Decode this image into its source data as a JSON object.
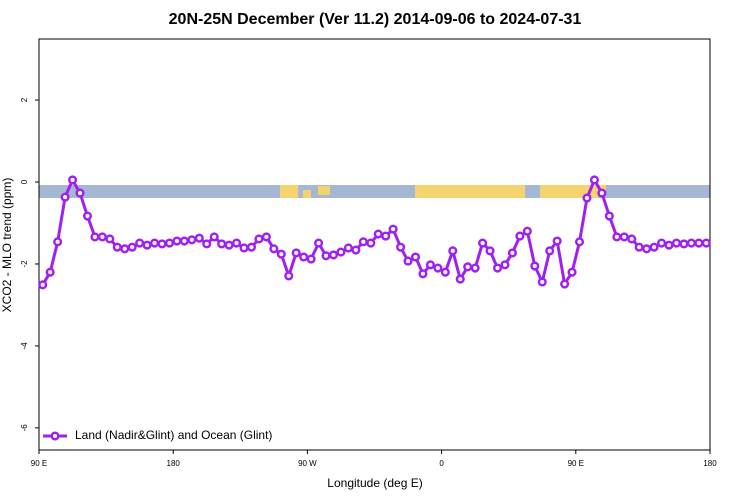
{
  "chart_data": {
    "type": "line",
    "title": "20N-25N December (Ver 11.2)   2014-09-06 to 2024-07-31",
    "x_label": "Longitude (deg E)",
    "y_label": "XCO2 - MLO trend (ppm)",
    "x": [
      92.5,
      97.5,
      102.5,
      107.5,
      112.5,
      117.5,
      122.5,
      127.5,
      132.5,
      137.5,
      142.5,
      147.5,
      152.5,
      157.5,
      162.5,
      167.5,
      172.5,
      177.5,
      182.5,
      187.5,
      192.5,
      197.5,
      202.5,
      207.5,
      212.5,
      217.5,
      222.5,
      227.5,
      232.5,
      237.5,
      242.5,
      247.5,
      252.5,
      257.5,
      262.5,
      267.5,
      272.5,
      277.5,
      282.5,
      287.5,
      292.5,
      297.5,
      302.5,
      307.5,
      312.5,
      317.5,
      322.5,
      327.5,
      332.5,
      337.5,
      342.5,
      347.5,
      352.5,
      357.5,
      362.5,
      367.5,
      372.5,
      377.5,
      382.5,
      387.5,
      392.5,
      397.5,
      402.5,
      407.5,
      412.5,
      417.5,
      422.5,
      427.5,
      432.5,
      437.5,
      442.5,
      447.5,
      452.5,
      457.5,
      462.5,
      467.5,
      472.5,
      477.5,
      482.5,
      487.5,
      492.5,
      497.5,
      502.5,
      507.5,
      512.5,
      517.5,
      522.5,
      527.5,
      532.5,
      537.5
    ],
    "series": [
      {
        "name": "Land (Nadir&Glint) and Ocean (Glint)",
        "color": "#a020f0",
        "values": [
          -2.51,
          -2.2,
          -1.46,
          -0.37,
          0.05,
          -0.27,
          -0.83,
          -1.34,
          -1.34,
          -1.39,
          -1.59,
          -1.63,
          -1.59,
          -1.49,
          -1.54,
          -1.49,
          -1.51,
          -1.49,
          -1.44,
          -1.44,
          -1.41,
          -1.37,
          -1.51,
          -1.34,
          -1.51,
          -1.54,
          -1.49,
          -1.61,
          -1.59,
          -1.39,
          -1.34,
          -1.63,
          -1.76,
          -2.29,
          -1.73,
          -1.83,
          -1.88,
          -1.49,
          -1.8,
          -1.78,
          -1.71,
          -1.61,
          -1.66,
          -1.46,
          -1.49,
          -1.27,
          -1.32,
          -1.15,
          -1.59,
          -1.93,
          -1.83,
          -2.24,
          -2.02,
          -2.1,
          -2.2,
          -1.68,
          -2.37,
          -2.07,
          -2.1,
          -1.49,
          -1.68,
          -2.1,
          -2.02,
          -1.73,
          -1.32,
          -1.2,
          -2.05,
          -2.44,
          -1.68,
          -1.44,
          -2.49,
          -2.2,
          -1.46,
          -0.39,
          0.05,
          -0.27,
          -0.83,
          -1.34,
          -1.34,
          -1.39,
          -1.59,
          -1.63,
          -1.59,
          -1.49,
          -1.54,
          -1.49,
          -1.51,
          -1.49,
          -1.49,
          -1.49
        ]
      }
    ],
    "xlim": [
      90,
      540
    ],
    "xticks": [
      {
        "value": 90,
        "label": "90 E"
      },
      180,
      {
        "value": 270,
        "label": "90 W"
      },
      {
        "value": 360,
        "label": "0"
      },
      {
        "value": 450,
        "label": "90 E"
      },
      {
        "value": 540,
        "label": "180"
      }
    ],
    "ylim": [
      -6.54,
      3.49
    ],
    "yticks": [
      -6,
      -4,
      -2,
      0,
      2
    ],
    "legend": "bottomleft"
  }
}
